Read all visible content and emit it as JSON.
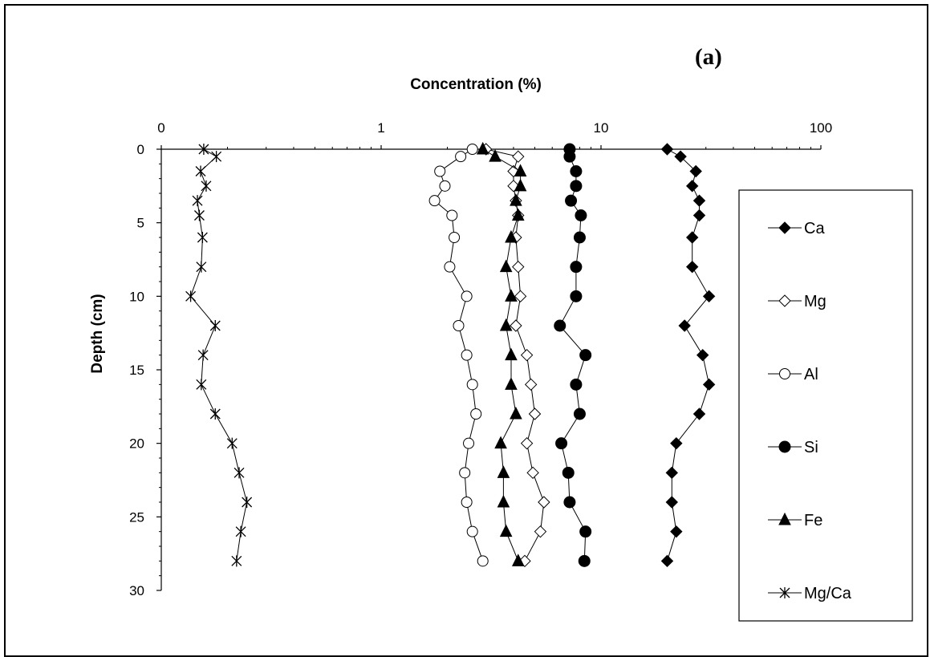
{
  "chart_data": {
    "type": "scatter",
    "panel_label": "(a)",
    "xlabel": "Concentration (%)",
    "ylabel": "Depth (cm)",
    "x_scale": "log",
    "x_axis_position": "top",
    "y_inverted": true,
    "xlim": [
      0.1,
      100
    ],
    "ylim": [
      0,
      30
    ],
    "x_ticks": [
      {
        "value": 0.1,
        "label": "0"
      },
      {
        "value": 1,
        "label": "1"
      },
      {
        "value": 10,
        "label": "10"
      },
      {
        "value": 100,
        "label": "100"
      }
    ],
    "y_ticks": [
      0,
      5,
      10,
      15,
      20,
      25,
      30
    ],
    "grid": false,
    "legend_position": "right",
    "series": [
      {
        "name": "Ca",
        "marker": "diamond-filled",
        "points": [
          [
            20,
            0
          ],
          [
            23,
            0.5
          ],
          [
            27,
            1.5
          ],
          [
            26,
            2.5
          ],
          [
            28,
            3.5
          ],
          [
            28,
            4.5
          ],
          [
            26,
            6
          ],
          [
            26,
            8
          ],
          [
            31,
            10
          ],
          [
            24,
            12
          ],
          [
            29,
            14
          ],
          [
            31,
            16
          ],
          [
            28,
            18
          ],
          [
            22,
            20
          ],
          [
            21,
            22
          ],
          [
            21,
            24
          ],
          [
            22,
            26
          ],
          [
            20,
            28
          ]
        ]
      },
      {
        "name": "Mg",
        "marker": "diamond-open",
        "points": [
          [
            3,
            0
          ],
          [
            4.2,
            0.5
          ],
          [
            4,
            1.5
          ],
          [
            4,
            2.5
          ],
          [
            4.1,
            3.5
          ],
          [
            4.2,
            4.5
          ],
          [
            4.1,
            6
          ],
          [
            4.2,
            8
          ],
          [
            4.3,
            10
          ],
          [
            4.1,
            12
          ],
          [
            4.6,
            14
          ],
          [
            4.8,
            16
          ],
          [
            5.0,
            18
          ],
          [
            4.6,
            20
          ],
          [
            4.9,
            22
          ],
          [
            5.5,
            24
          ],
          [
            5.3,
            26
          ],
          [
            4.5,
            28
          ]
        ]
      },
      {
        "name": "Al",
        "marker": "circle-open",
        "points": [
          [
            2.6,
            0
          ],
          [
            2.3,
            0.5
          ],
          [
            1.85,
            1.5
          ],
          [
            1.95,
            2.5
          ],
          [
            1.75,
            3.5
          ],
          [
            2.1,
            4.5
          ],
          [
            2.15,
            6
          ],
          [
            2.05,
            8
          ],
          [
            2.45,
            10
          ],
          [
            2.25,
            12
          ],
          [
            2.45,
            14
          ],
          [
            2.6,
            16
          ],
          [
            2.7,
            18
          ],
          [
            2.5,
            20
          ],
          [
            2.4,
            22
          ],
          [
            2.45,
            24
          ],
          [
            2.6,
            26
          ],
          [
            2.9,
            28
          ]
        ]
      },
      {
        "name": "Si",
        "marker": "circle-filled",
        "points": [
          [
            7.2,
            0
          ],
          [
            7.2,
            0.5
          ],
          [
            7.7,
            1.5
          ],
          [
            7.7,
            2.5
          ],
          [
            7.3,
            3.5
          ],
          [
            8.1,
            4.5
          ],
          [
            8.0,
            6
          ],
          [
            7.7,
            8
          ],
          [
            7.7,
            10
          ],
          [
            6.5,
            12
          ],
          [
            8.5,
            14
          ],
          [
            7.7,
            16
          ],
          [
            8.0,
            18
          ],
          [
            6.6,
            20
          ],
          [
            7.1,
            22
          ],
          [
            7.2,
            24
          ],
          [
            8.5,
            26
          ],
          [
            8.4,
            28
          ]
        ]
      },
      {
        "name": "Fe",
        "marker": "triangle-filled",
        "points": [
          [
            2.9,
            0
          ],
          [
            3.3,
            0.5
          ],
          [
            4.3,
            1.5
          ],
          [
            4.3,
            2.5
          ],
          [
            4.1,
            3.5
          ],
          [
            4.2,
            4.5
          ],
          [
            3.9,
            6
          ],
          [
            3.7,
            8
          ],
          [
            3.9,
            10
          ],
          [
            3.7,
            12
          ],
          [
            3.9,
            14
          ],
          [
            3.9,
            16
          ],
          [
            4.1,
            18
          ],
          [
            3.5,
            20
          ],
          [
            3.6,
            22
          ],
          [
            3.6,
            24
          ],
          [
            3.7,
            26
          ],
          [
            4.2,
            28
          ]
        ]
      },
      {
        "name": "Mg/Ca",
        "marker": "asterisk",
        "points": [
          [
            0.156,
            0
          ],
          [
            0.178,
            0.5
          ],
          [
            0.151,
            1.5
          ],
          [
            0.16,
            2.5
          ],
          [
            0.146,
            3.5
          ],
          [
            0.149,
            4.5
          ],
          [
            0.154,
            6
          ],
          [
            0.152,
            8
          ],
          [
            0.136,
            10
          ],
          [
            0.176,
            12
          ],
          [
            0.155,
            14
          ],
          [
            0.152,
            16
          ],
          [
            0.176,
            18
          ],
          [
            0.21,
            20
          ],
          [
            0.226,
            22
          ],
          [
            0.245,
            24
          ],
          [
            0.23,
            26
          ],
          [
            0.22,
            28
          ]
        ]
      }
    ]
  }
}
